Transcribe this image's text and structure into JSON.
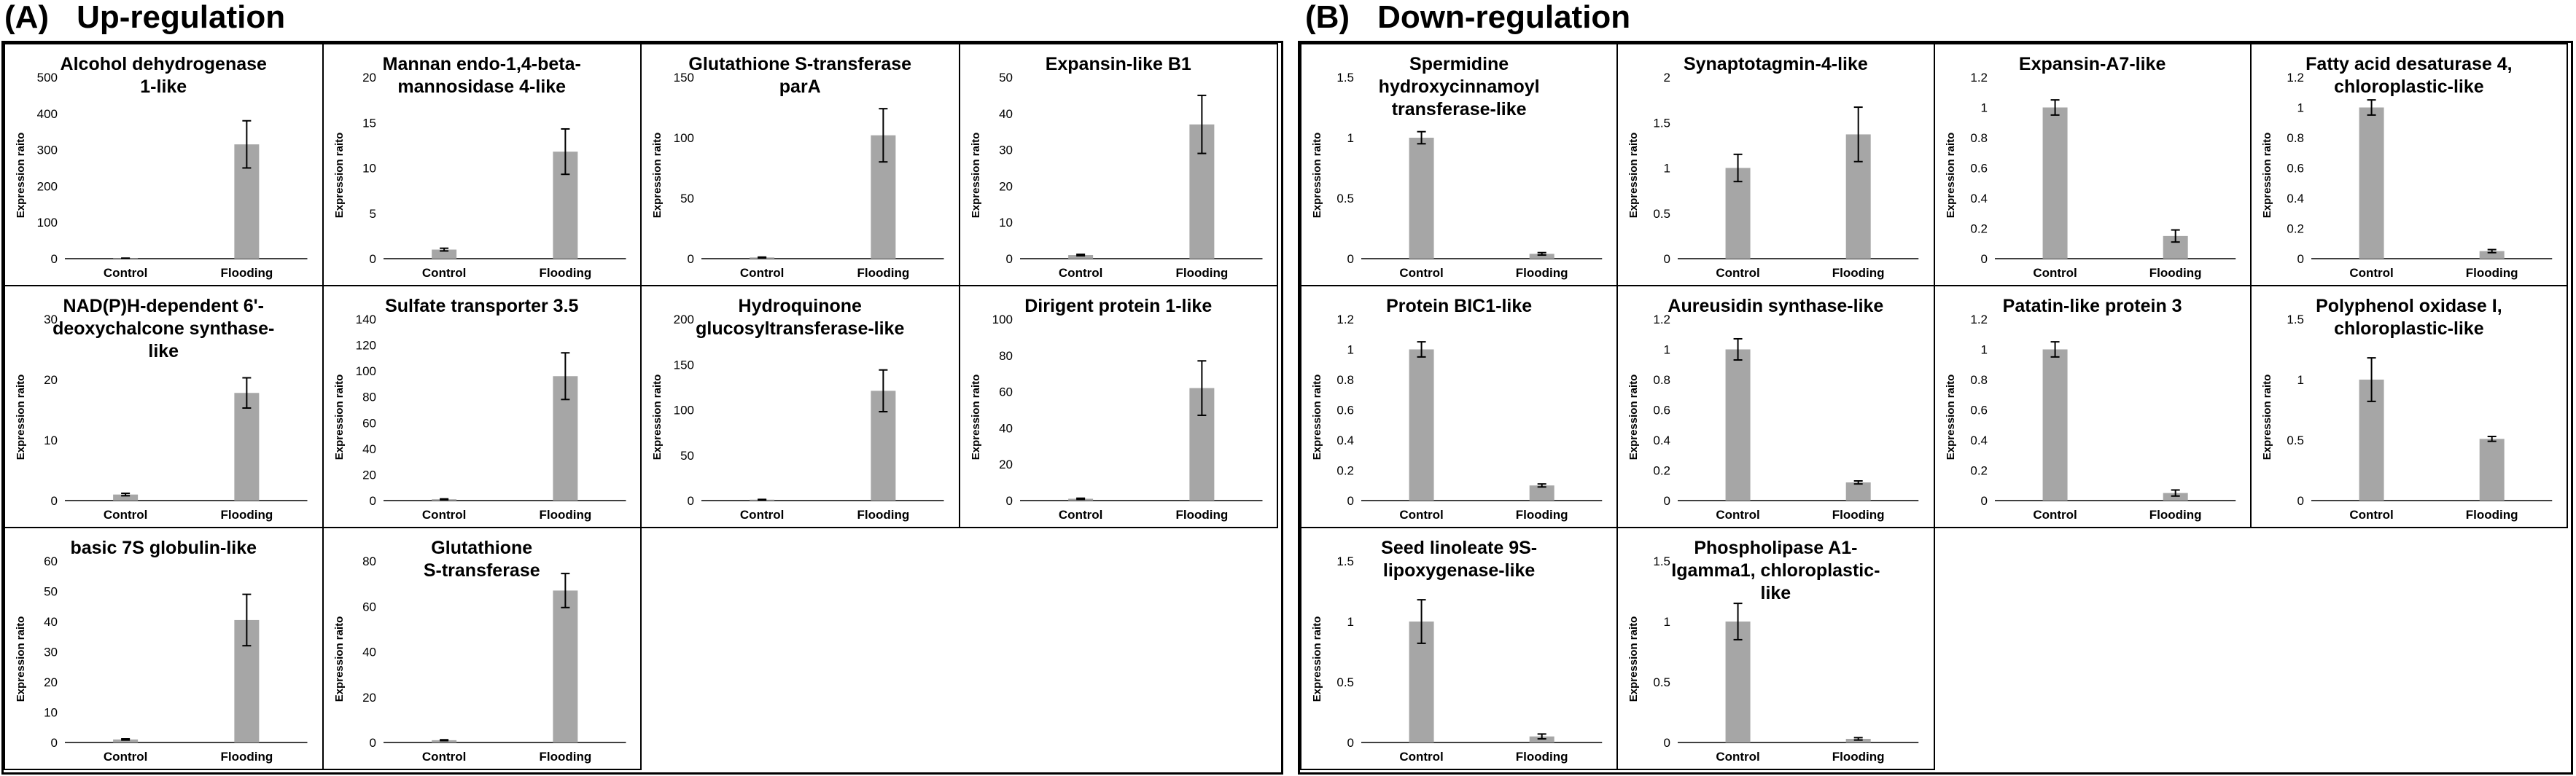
{
  "sections": [
    {
      "letter": "(A)",
      "title": "Up-regulation",
      "ylabel": "Expression raito",
      "categories": [
        "Control",
        "Flooding"
      ],
      "charts": [
        {
          "type": "bar",
          "title": "Alcohol dehydrogenase\n1-like",
          "ticks": [
            "0",
            "100",
            "200",
            "300",
            "400",
            "500"
          ],
          "ylim": [
            0,
            500
          ],
          "values": [
            1,
            315
          ],
          "errors": [
            0.5,
            65
          ]
        },
        {
          "type": "bar",
          "title": "Mannan endo-1,4-beta-\nmannosidase 4-like",
          "ticks": [
            "0",
            "5",
            "10",
            "15",
            "20"
          ],
          "ylim": [
            0,
            20
          ],
          "values": [
            1,
            11.8
          ],
          "errors": [
            0.15,
            2.5
          ]
        },
        {
          "type": "bar",
          "title": "Glutathione S-transferase\nparA",
          "ticks": [
            "0",
            "50",
            "100",
            "150"
          ],
          "ylim": [
            0,
            150
          ],
          "values": [
            1,
            102
          ],
          "errors": [
            0.3,
            22
          ]
        },
        {
          "type": "bar",
          "title": "Expansin-like B1",
          "ticks": [
            "0",
            "10",
            "20",
            "30",
            "40",
            "50"
          ],
          "ylim": [
            0,
            50
          ],
          "values": [
            1,
            37
          ],
          "errors": [
            0.2,
            8
          ]
        },
        {
          "type": "bar",
          "title": "NAD(P)H-dependent 6'-\ndeoxychalcone synthase-\nlike",
          "ticks": [
            "0",
            "10",
            "20",
            "30"
          ],
          "ylim": [
            0,
            30
          ],
          "values": [
            1,
            17.8
          ],
          "errors": [
            0.2,
            2.5
          ]
        },
        {
          "type": "bar",
          "title": "Sulfate transporter 3.5",
          "ticks": [
            "0",
            "20",
            "40",
            "60",
            "80",
            "100",
            "120",
            "140"
          ],
          "ylim": [
            0,
            140
          ],
          "values": [
            1,
            96
          ],
          "errors": [
            0.3,
            18
          ]
        },
        {
          "type": "bar",
          "title": "Hydroquinone\nglucosyltransferase-like",
          "ticks": [
            "0",
            "50",
            "100",
            "150",
            "200"
          ],
          "ylim": [
            0,
            200
          ],
          "values": [
            1,
            121
          ],
          "errors": [
            0.3,
            23
          ]
        },
        {
          "type": "bar",
          "title": "Dirigent protein 1-like",
          "ticks": [
            "0",
            "20",
            "40",
            "60",
            "80",
            "100"
          ],
          "ylim": [
            0,
            100
          ],
          "values": [
            1,
            62
          ],
          "errors": [
            0.3,
            15
          ]
        },
        {
          "type": "bar",
          "title": "basic 7S globulin-like",
          "ticks": [
            "0",
            "10",
            "20",
            "30",
            "40",
            "50",
            "60"
          ],
          "ylim": [
            0,
            60
          ],
          "values": [
            1,
            40.5
          ],
          "errors": [
            0.2,
            8.5
          ]
        },
        {
          "type": "bar",
          "title": "Glutathione\nS-transferase",
          "ticks": [
            "0",
            "20",
            "40",
            "60",
            "80"
          ],
          "ylim": [
            0,
            80
          ],
          "values": [
            1,
            67
          ],
          "errors": [
            0.2,
            7.5
          ]
        }
      ]
    },
    {
      "letter": "(B)",
      "title": "Down-regulation",
      "ylabel": "Expression raito",
      "categories": [
        "Control",
        "Flooding"
      ],
      "charts": [
        {
          "type": "bar",
          "title": "Spermidine\nhydroxycinnamoyl\ntransferase-like",
          "ticks": [
            "0",
            "0.5",
            "1",
            "1.5"
          ],
          "ylim": [
            0,
            1.5
          ],
          "values": [
            1,
            0.04
          ],
          "errors": [
            0.05,
            0.01
          ]
        },
        {
          "type": "bar",
          "title": "Synaptotagmin-4-like",
          "ticks": [
            "0",
            "0.5",
            "1",
            "1.5",
            "2"
          ],
          "ylim": [
            0,
            2
          ],
          "values": [
            1,
            1.37
          ],
          "errors": [
            0.15,
            0.3
          ]
        },
        {
          "type": "bar",
          "title": "Expansin-A7-like",
          "ticks": [
            "0",
            "0.2",
            "0.4",
            "0.6",
            "0.8",
            "1",
            "1.2"
          ],
          "ylim": [
            0,
            1.2
          ],
          "values": [
            1,
            0.15
          ],
          "errors": [
            0.05,
            0.04
          ]
        },
        {
          "type": "bar",
          "title": "Fatty acid desaturase 4,\nchloroplastic-like",
          "ticks": [
            "0",
            "0.2",
            "0.4",
            "0.6",
            "0.8",
            "1",
            "1.2"
          ],
          "ylim": [
            0,
            1.2
          ],
          "values": [
            1,
            0.05
          ],
          "errors": [
            0.05,
            0.01
          ]
        },
        {
          "type": "bar",
          "title": "Protein BIC1-like",
          "ticks": [
            "0",
            "0.2",
            "0.4",
            "0.6",
            "0.8",
            "1",
            "1.2"
          ],
          "ylim": [
            0,
            1.2
          ],
          "values": [
            1,
            0.1
          ],
          "errors": [
            0.05,
            0.01
          ]
        },
        {
          "type": "bar",
          "title": "Aureusidin synthase-like",
          "ticks": [
            "0",
            "0.2",
            "0.4",
            "0.6",
            "0.8",
            "1",
            "1.2"
          ],
          "ylim": [
            0,
            1.2
          ],
          "values": [
            1,
            0.12
          ],
          "errors": [
            0.07,
            0.01
          ]
        },
        {
          "type": "bar",
          "title": "Patatin-like protein 3",
          "ticks": [
            "0",
            "0.2",
            "0.4",
            "0.6",
            "0.8",
            "1",
            "1.2"
          ],
          "ylim": [
            0,
            1.2
          ],
          "values": [
            1,
            0.05
          ],
          "errors": [
            0.05,
            0.02
          ]
        },
        {
          "type": "bar",
          "title": "Polyphenol oxidase I,\nchloroplastic-like",
          "ticks": [
            "0",
            "0.5",
            "1",
            "1.5"
          ],
          "ylim": [
            0,
            1.5
          ],
          "values": [
            1,
            0.51
          ],
          "errors": [
            0.18,
            0.02
          ]
        },
        {
          "type": "bar",
          "title": "Seed linoleate 9S-\nlipoxygenase-like",
          "ticks": [
            "0",
            "0.5",
            "1",
            "1.5"
          ],
          "ylim": [
            0,
            1.5
          ],
          "values": [
            1,
            0.05
          ],
          "errors": [
            0.18,
            0.02
          ]
        },
        {
          "type": "bar",
          "title": "Phospholipase A1-\nIgamma1, chloroplastic-\nlike",
          "ticks": [
            "0",
            "0.5",
            "1",
            "1.5"
          ],
          "ylim": [
            0,
            1.5
          ],
          "values": [
            1,
            0.03
          ],
          "errors": [
            0.15,
            0.01
          ]
        }
      ]
    }
  ],
  "colors": {
    "bar": "#a6a6a6",
    "axis": "#000000"
  }
}
